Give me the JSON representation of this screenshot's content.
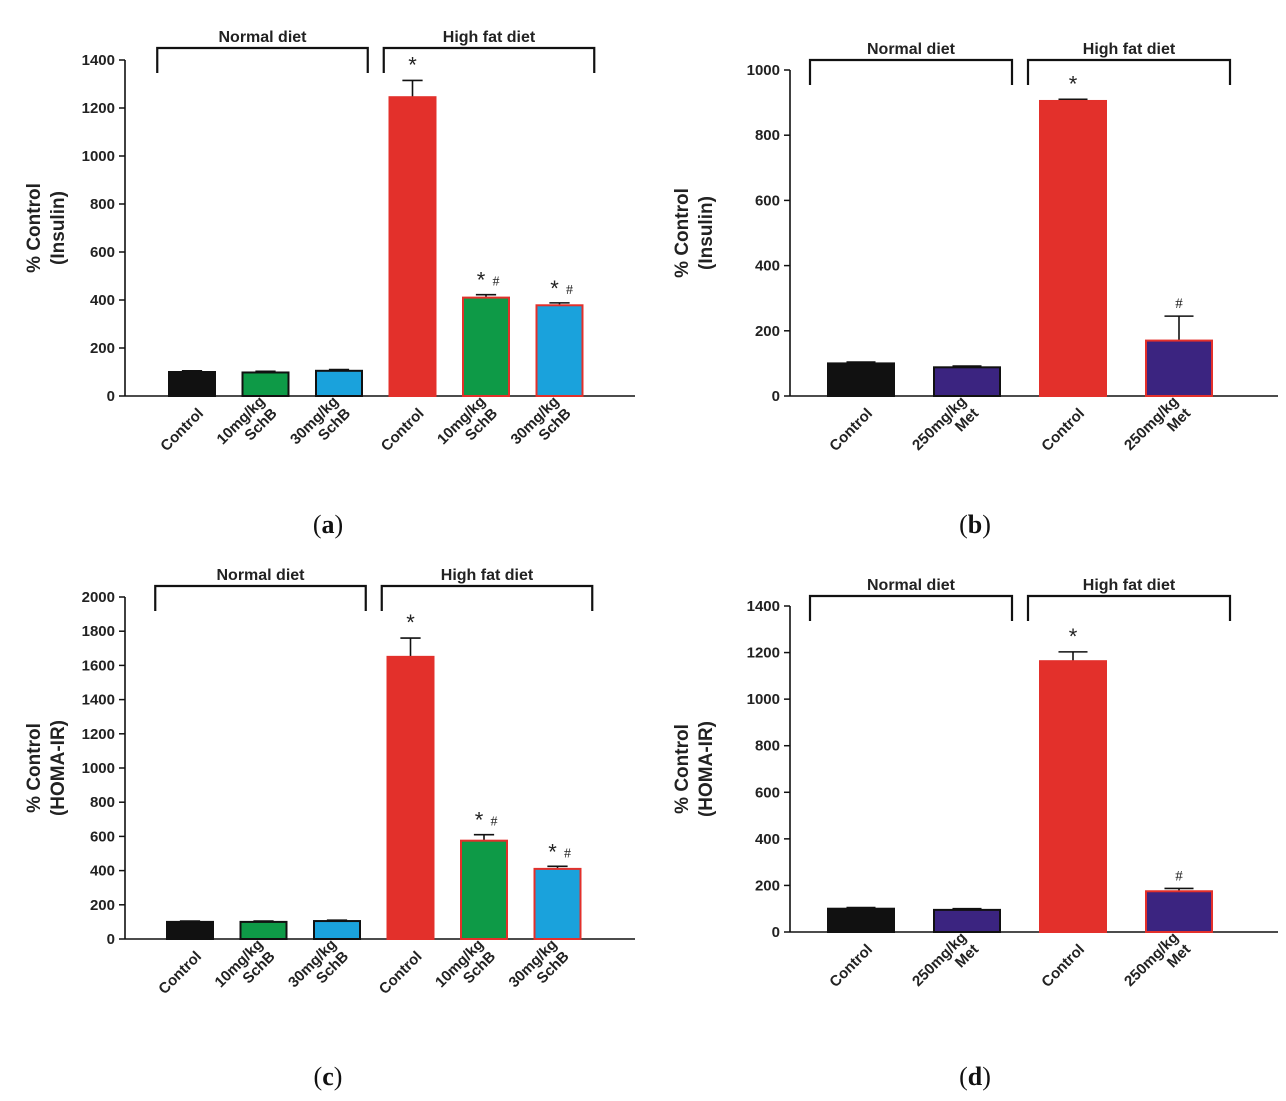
{
  "chart_data": [
    {
      "id": "a",
      "type": "bar",
      "panel_label": "a",
      "ylabel_lines": [
        "% Control",
        "(Insulin)"
      ],
      "ylim": [
        0,
        1400
      ],
      "yticks": [
        0,
        200,
        400,
        600,
        800,
        1000,
        1200,
        1400
      ],
      "groups": [
        {
          "label": "Normal diet",
          "span": [
            0,
            2
          ]
        },
        {
          "label": "High fat diet",
          "span": [
            3,
            5
          ]
        }
      ],
      "bars": [
        {
          "label_lines": [
            "Control"
          ],
          "value": 100,
          "error": 5,
          "color": "#111111",
          "edge": "#111111",
          "marks": ""
        },
        {
          "label_lines": [
            "10mg/kg",
            "SchB"
          ],
          "value": 98,
          "error": 5,
          "color": "#0e9a47",
          "edge": "#111111",
          "marks": ""
        },
        {
          "label_lines": [
            "30mg/kg",
            "SchB"
          ],
          "value": 105,
          "error": 5,
          "color": "#1aa2dc",
          "edge": "#111111",
          "marks": ""
        },
        {
          "label_lines": [
            "Control"
          ],
          "value": 1245,
          "error": 70,
          "color": "#e3302b",
          "edge": "#e3302b",
          "marks": "*"
        },
        {
          "label_lines": [
            "10mg/kg",
            "SchB"
          ],
          "value": 410,
          "error": 12,
          "color": "#0e9a47",
          "edge": "#e3302b",
          "marks": "*#"
        },
        {
          "label_lines": [
            "30mg/kg",
            "SchB"
          ],
          "value": 378,
          "error": 10,
          "color": "#1aa2dc",
          "edge": "#e3302b",
          "marks": "*#"
        }
      ]
    },
    {
      "id": "b",
      "type": "bar",
      "panel_label": "b",
      "ylabel_lines": [
        "% Control",
        "(Insulin)"
      ],
      "ylim": [
        0,
        1000
      ],
      "yticks": [
        0,
        200,
        400,
        600,
        800,
        1000
      ],
      "groups": [
        {
          "label": "Normal diet",
          "span": [
            0,
            1
          ]
        },
        {
          "label": "High fat diet",
          "span": [
            2,
            3
          ]
        }
      ],
      "bars": [
        {
          "label_lines": [
            "Control"
          ],
          "value": 100,
          "error": 4,
          "color": "#111111",
          "edge": "#111111",
          "marks": ""
        },
        {
          "label_lines": [
            "250mg/kg",
            "Met"
          ],
          "value": 88,
          "error": 4,
          "color": "#3b2480",
          "edge": "#111111",
          "marks": ""
        },
        {
          "label_lines": [
            "Control"
          ],
          "value": 905,
          "error": 5,
          "color": "#e3302b",
          "edge": "#e3302b",
          "marks": "*"
        },
        {
          "label_lines": [
            "250mg/kg",
            "Met"
          ],
          "value": 170,
          "error": 75,
          "color": "#3b2480",
          "edge": "#e3302b",
          "marks": "#"
        }
      ]
    },
    {
      "id": "c",
      "type": "bar",
      "panel_label": "c",
      "ylabel_lines": [
        "% Control",
        "(HOMA-IR)"
      ],
      "ylim": [
        0,
        2000
      ],
      "yticks": [
        0,
        200,
        400,
        600,
        800,
        1000,
        1200,
        1400,
        1600,
        1800,
        2000
      ],
      "groups": [
        {
          "label": "Normal diet",
          "span": [
            0,
            2
          ]
        },
        {
          "label": "High fat diet",
          "span": [
            3,
            5
          ]
        }
      ],
      "bars": [
        {
          "label_lines": [
            "Control"
          ],
          "value": 100,
          "error": 5,
          "color": "#111111",
          "edge": "#111111",
          "marks": ""
        },
        {
          "label_lines": [
            "10mg/kg",
            "SchB"
          ],
          "value": 100,
          "error": 5,
          "color": "#0e9a47",
          "edge": "#111111",
          "marks": ""
        },
        {
          "label_lines": [
            "30mg/kg",
            "SchB"
          ],
          "value": 105,
          "error": 5,
          "color": "#1aa2dc",
          "edge": "#111111",
          "marks": ""
        },
        {
          "label_lines": [
            "Control"
          ],
          "value": 1650,
          "error": 110,
          "color": "#e3302b",
          "edge": "#e3302b",
          "marks": "*"
        },
        {
          "label_lines": [
            "10mg/kg",
            "SchB"
          ],
          "value": 575,
          "error": 35,
          "color": "#0e9a47",
          "edge": "#e3302b",
          "marks": "*#"
        },
        {
          "label_lines": [
            "30mg/kg",
            "SchB"
          ],
          "value": 410,
          "error": 15,
          "color": "#1aa2dc",
          "edge": "#e3302b",
          "marks": "*#"
        }
      ]
    },
    {
      "id": "d",
      "type": "bar",
      "panel_label": "d",
      "ylabel_lines": [
        "% Control",
        "(HOMA-IR)"
      ],
      "ylim": [
        0,
        1400
      ],
      "yticks": [
        0,
        200,
        400,
        600,
        800,
        1000,
        1200,
        1400
      ],
      "groups": [
        {
          "label": "Normal diet",
          "span": [
            0,
            1
          ]
        },
        {
          "label": "High fat diet",
          "span": [
            2,
            3
          ]
        }
      ],
      "bars": [
        {
          "label_lines": [
            "Control"
          ],
          "value": 100,
          "error": 5,
          "color": "#111111",
          "edge": "#111111",
          "marks": ""
        },
        {
          "label_lines": [
            "250mg/kg",
            "Met"
          ],
          "value": 95,
          "error": 5,
          "color": "#3b2480",
          "edge": "#111111",
          "marks": ""
        },
        {
          "label_lines": [
            "Control"
          ],
          "value": 1163,
          "error": 40,
          "color": "#e3302b",
          "edge": "#e3302b",
          "marks": "*"
        },
        {
          "label_lines": [
            "250mg/kg",
            "Met"
          ],
          "value": 175,
          "error": 12,
          "color": "#3b2480",
          "edge": "#e3302b",
          "marks": "#"
        }
      ]
    }
  ]
}
